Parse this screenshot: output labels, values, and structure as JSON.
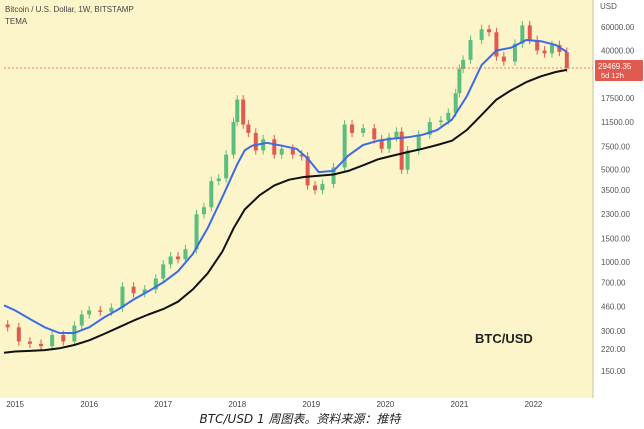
{
  "header": {
    "symbol_line": "Bitcoin / U.S. Dollar, 1W, BITSTAMP",
    "indicator": "TEMA"
  },
  "price_box": {
    "price": "29469.35",
    "countdown": "5d 12h"
  },
  "watermark": "BTC/USD",
  "caption": "BTC/USD 1 周图表。资料来源：推特",
  "colors": {
    "background": "#fcf5c9",
    "up_candle": "#5cbd7e",
    "down_candle": "#e05a4f",
    "tema_line": "#3d6be8",
    "slow_line": "#111111",
    "price_label_bg": "#e05a4f"
  },
  "chart_data": {
    "type": "line",
    "title": "Bitcoin / U.S. Dollar, 1W, BITSTAMP",
    "yscale": "log",
    "ylabel": "USD",
    "ylim": [
      100,
      90000
    ],
    "xlim": [
      2014.85,
      2022.75
    ],
    "x_ticks": [
      "2015",
      "2016",
      "2017",
      "2018",
      "2019",
      "2020",
      "2021",
      "2022"
    ],
    "y_ticks": [
      60000,
      40000,
      17500,
      11500,
      7500,
      5000,
      3500,
      2300,
      1500,
      1000,
      700,
      460,
      300,
      220,
      150
    ],
    "y_tick_labels": [
      "60000.00",
      "40000.00",
      "17500.00",
      "11500.00",
      "7500.00",
      "5000.00",
      "3500.00",
      "2300.00",
      "1500.00",
      "1000.00",
      "700.00",
      "460.00",
      "300.00",
      "220.00",
      "150.00"
    ],
    "last_price": 29469.35,
    "series": [
      {
        "name": "BTC/USD",
        "style": "candles",
        "x": [
          2014.9,
          2015.05,
          2015.2,
          2015.35,
          2015.5,
          2015.65,
          2015.8,
          2015.9,
          2016.0,
          2016.15,
          2016.3,
          2016.45,
          2016.6,
          2016.75,
          2016.9,
          2017.0,
          2017.1,
          2017.2,
          2017.3,
          2017.45,
          2017.55,
          2017.65,
          2017.75,
          2017.85,
          2017.95,
          2018.0,
          2018.08,
          2018.15,
          2018.25,
          2018.35,
          2018.5,
          2018.6,
          2018.75,
          2018.87,
          2018.95,
          2019.05,
          2019.15,
          2019.3,
          2019.45,
          2019.55,
          2019.7,
          2019.85,
          2019.95,
          2020.05,
          2020.15,
          2020.22,
          2020.3,
          2020.45,
          2020.6,
          2020.75,
          2020.85,
          2020.95,
          2021.0,
          2021.05,
          2021.15,
          2021.3,
          2021.4,
          2021.5,
          2021.6,
          2021.75,
          2021.85,
          2021.95,
          2022.05,
          2022.15,
          2022.25,
          2022.35,
          2022.45
        ],
        "y": [
          320,
          250,
          240,
          230,
          280,
          250,
          330,
          400,
          430,
          420,
          450,
          650,
          580,
          620,
          750,
          960,
          1100,
          1050,
          1250,
          2300,
          2600,
          4100,
          4300,
          6500,
          11500,
          17000,
          11000,
          9500,
          7000,
          8500,
          6500,
          7200,
          6500,
          6300,
          3800,
          3500,
          3900,
          5200,
          11000,
          9500,
          10300,
          8500,
          7200,
          8800,
          9700,
          5000,
          7000,
          9200,
          11500,
          11800,
          13500,
          19000,
          29000,
          34000,
          48000,
          58000,
          55000,
          36000,
          33000,
          45000,
          62000,
          48000,
          40000,
          38000,
          44000,
          39000,
          29469.35
        ]
      },
      {
        "name": "TEMA",
        "style": "line",
        "x": [
          2014.85,
          2015.0,
          2015.2,
          2015.4,
          2015.6,
          2015.8,
          2016.0,
          2016.2,
          2016.4,
          2016.6,
          2016.8,
          2017.0,
          2017.2,
          2017.4,
          2017.6,
          2017.8,
          2018.0,
          2018.1,
          2018.2,
          2018.4,
          2018.6,
          2018.8,
          2018.95,
          2019.1,
          2019.3,
          2019.5,
          2019.7,
          2019.9,
          2020.1,
          2020.3,
          2020.5,
          2020.7,
          2020.9,
          2021.1,
          2021.3,
          2021.5,
          2021.7,
          2021.9,
          2022.1,
          2022.3,
          2022.45
        ],
        "y": [
          470,
          430,
          370,
          320,
          290,
          290,
          320,
          380,
          440,
          520,
          600,
          700,
          850,
          1150,
          1800,
          3100,
          5500,
          7000,
          7600,
          8000,
          7600,
          7200,
          6100,
          4800,
          4900,
          6400,
          7700,
          8300,
          8600,
          8800,
          9200,
          10000,
          12000,
          18000,
          31000,
          40000,
          42000,
          48000,
          47000,
          44000,
          39000
        ]
      },
      {
        "name": "",
        "style": "line",
        "x": [
          2014.85,
          2015.0,
          2015.2,
          2015.4,
          2015.6,
          2015.8,
          2016.0,
          2016.2,
          2016.4,
          2016.6,
          2016.8,
          2017.0,
          2017.2,
          2017.4,
          2017.6,
          2017.8,
          2017.95,
          2018.1,
          2018.3,
          2018.5,
          2018.7,
          2018.9,
          2019.1,
          2019.3,
          2019.5,
          2019.7,
          2019.9,
          2020.1,
          2020.3,
          2020.5,
          2020.7,
          2020.9,
          2021.1,
          2021.3,
          2021.5,
          2021.7,
          2021.9,
          2022.1,
          2022.3,
          2022.45
        ],
        "y": [
          205,
          210,
          212,
          215,
          222,
          235,
          255,
          285,
          320,
          360,
          400,
          440,
          500,
          620,
          820,
          1200,
          1800,
          2500,
          3200,
          3800,
          4200,
          4400,
          4500,
          4600,
          4900,
          5400,
          6000,
          6400,
          6800,
          7200,
          7700,
          8300,
          10000,
          13000,
          17000,
          20000,
          23000,
          25500,
          27500,
          28500
        ]
      }
    ]
  }
}
